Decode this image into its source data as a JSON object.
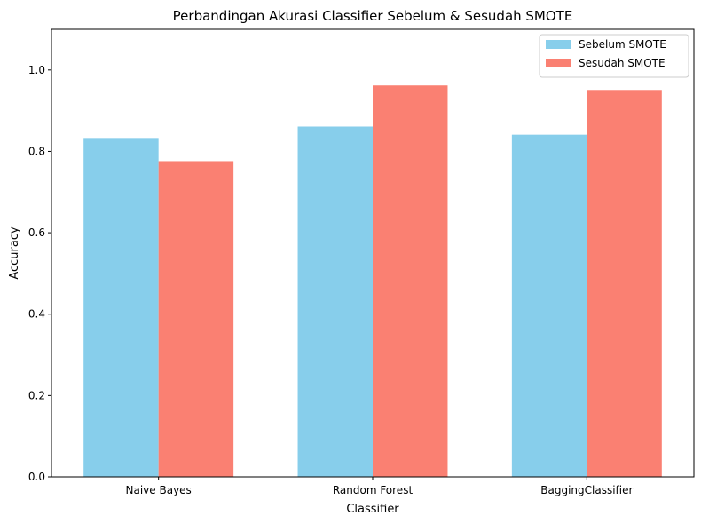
{
  "chart_data": {
    "type": "bar",
    "title": "Perbandingan Akurasi Classifier Sebelum & Sesudah SMOTE",
    "xlabel": "Classifier",
    "ylabel": "Accuracy",
    "categories": [
      "Naive Bayes",
      "Random Forest",
      "BaggingClassifier"
    ],
    "series": [
      {
        "name": "Sebelum SMOTE",
        "values": [
          0.833,
          0.861,
          0.841
        ],
        "color": "#87ceeb"
      },
      {
        "name": "Sesudah SMOTE",
        "values": [
          0.776,
          0.962,
          0.951
        ],
        "color": "#fa8072"
      }
    ],
    "ylim": [
      0,
      1.1
    ],
    "yticks": [
      "0.0",
      "0.2",
      "0.4",
      "0.6",
      "0.8",
      "1.0"
    ],
    "grid": false,
    "legend_position": "upper right"
  }
}
